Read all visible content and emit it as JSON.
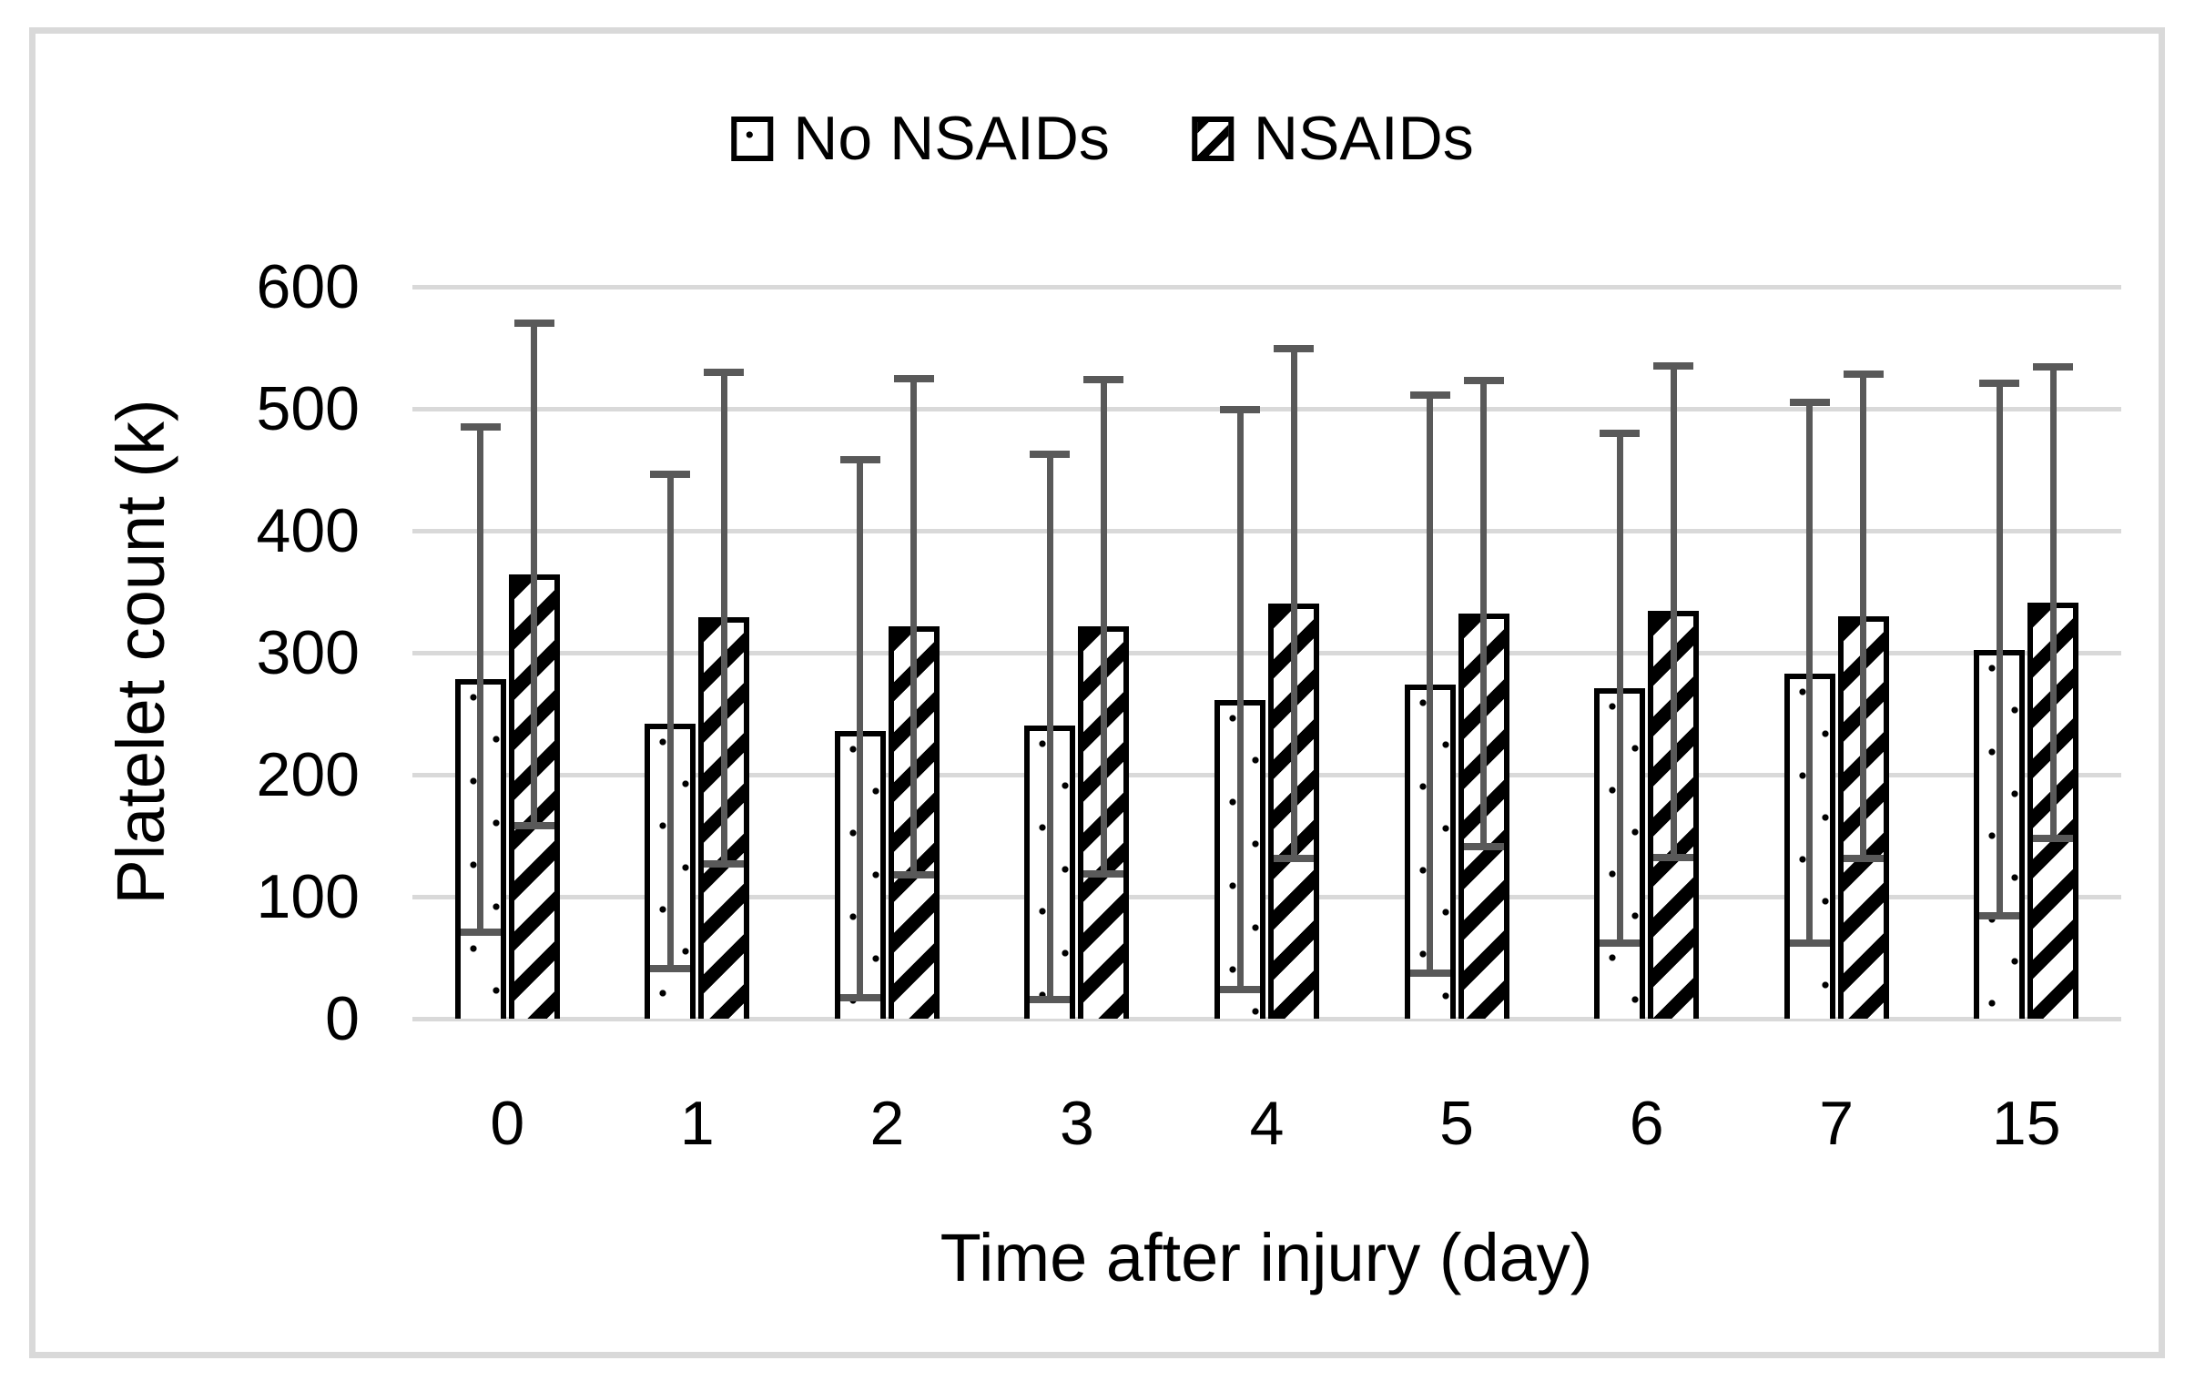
{
  "figure": {
    "background_color": "#FFFFFF",
    "border_color": "#D9D9D9"
  },
  "chart_data": {
    "type": "bar",
    "title": "",
    "xlabel": "Time after injury (day)",
    "ylabel": "Platelet count (k)",
    "categories": [
      "0",
      "1",
      "2",
      "3",
      "4",
      "5",
      "6",
      "7",
      "15"
    ],
    "ylim": [
      0,
      600
    ],
    "yticks": [
      0,
      100,
      200,
      300,
      400,
      500,
      600
    ],
    "grid": true,
    "legend_position": "top-center",
    "bar_fill": "#FFFFFF",
    "bar_border_color": "#000000",
    "error_bar_color": "#595959",
    "gridline_color": "#D9D9D9",
    "series": [
      {
        "name": "No NSAIDs",
        "pattern": "dots",
        "values": [
          278,
          242,
          236,
          240,
          261,
          274,
          271,
          283,
          302
        ],
        "error_high": [
          485,
          446,
          458,
          463,
          499,
          511,
          480,
          505,
          521
        ],
        "error_low": [
          71,
          41,
          17,
          16,
          24,
          37,
          62,
          62,
          84
        ]
      },
      {
        "name": "NSAIDs",
        "pattern": "stripes",
        "values": [
          364,
          329,
          322,
          322,
          340,
          332,
          334,
          330,
          341
        ],
        "error_high": [
          570,
          530,
          525,
          524,
          549,
          523,
          535,
          528,
          534
        ],
        "error_low": [
          158,
          127,
          118,
          119,
          131,
          141,
          132,
          131,
          148
        ]
      }
    ]
  }
}
